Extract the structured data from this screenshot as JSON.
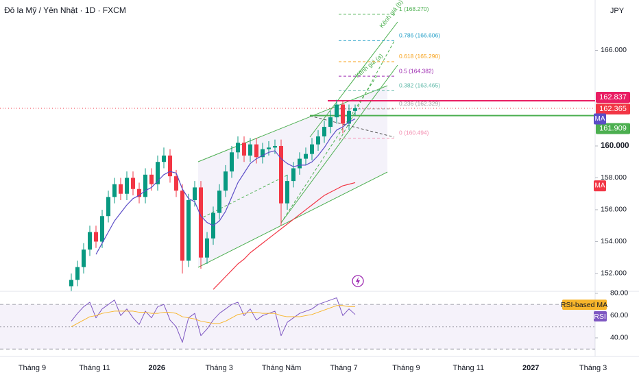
{
  "chart_data": {
    "type": "candlestick",
    "title": "Đô la Mỹ / Yên Nhật · 1D · FXCM",
    "currency": "JPY",
    "up_color": "#089981",
    "down_color": "#f23645",
    "ylim": [
      150.88,
      169.16
    ],
    "yticks": [
      {
        "value": 152,
        "label": "152.000"
      },
      {
        "value": 154,
        "label": "154.000"
      },
      {
        "value": 156,
        "label": "156.000"
      },
      {
        "value": 158,
        "label": "158.000"
      },
      {
        "value": 160,
        "label": "160.000"
      },
      {
        "value": 166,
        "label": "166.000"
      }
    ],
    "x_labels": [
      {
        "label": "Tháng 9",
        "bold": false
      },
      {
        "label": "Tháng 11",
        "bold": false
      },
      {
        "label": "2026",
        "bold": true
      },
      {
        "label": "Tháng 3",
        "bold": false
      },
      {
        "label": "Tháng Năm",
        "bold": false
      },
      {
        "label": "Tháng 7",
        "bold": false
      },
      {
        "label": "Tháng 9",
        "bold": false
      },
      {
        "label": "Tháng 11",
        "bold": false
      },
      {
        "label": "2027",
        "bold": true
      },
      {
        "label": "Tháng 3",
        "bold": false
      }
    ],
    "open": [
      151.2,
      151.6,
      152.4,
      153.5,
      154.6,
      154.0,
      155.6,
      156.8,
      157.6,
      157.0,
      158.0,
      157.3,
      156.8,
      158.2,
      157.6,
      159.0,
      159.4,
      158.1,
      157.2,
      152.8,
      156.6,
      157.4,
      153.0,
      154.2,
      155.8,
      157.2,
      158.4,
      159.6,
      160.2,
      159.4,
      160.1,
      159.3,
      159.8,
      159.9,
      160.0,
      156.4,
      157.8,
      158.6,
      159.2,
      159.5,
      160.1,
      160.6,
      161.2,
      161.8,
      162.6,
      161.4,
      162.2
    ],
    "high": [
      152.0,
      152.8,
      153.9,
      155.0,
      155.0,
      156.0,
      157.2,
      158.0,
      158.0,
      158.4,
      158.4,
      157.7,
      158.6,
      158.6,
      159.4,
      159.9,
      159.8,
      158.5,
      157.6,
      157.0,
      157.8,
      157.8,
      154.6,
      156.2,
      157.6,
      158.8,
      160.0,
      160.6,
      160.6,
      160.5,
      160.5,
      160.2,
      160.3,
      160.4,
      160.4,
      158.2,
      159.0,
      159.6,
      159.9,
      160.5,
      161.0,
      161.6,
      162.2,
      162.9,
      162.8,
      162.6,
      162.6
    ],
    "low": [
      150.9,
      151.2,
      152.0,
      153.1,
      153.6,
      153.6,
      155.2,
      156.4,
      156.6,
      156.6,
      156.9,
      156.4,
      156.4,
      157.2,
      157.2,
      158.6,
      157.7,
      156.8,
      152.0,
      152.4,
      156.2,
      152.3,
      152.6,
      153.8,
      155.4,
      156.8,
      158.0,
      159.2,
      159.0,
      159.0,
      158.9,
      158.9,
      159.4,
      159.5,
      155.0,
      156.0,
      157.4,
      158.2,
      158.8,
      159.1,
      159.7,
      160.2,
      160.8,
      161.4,
      160.8,
      161.0,
      161.9
    ],
    "close": [
      151.6,
      152.4,
      153.5,
      154.6,
      154.0,
      155.6,
      156.8,
      157.6,
      157.0,
      158.0,
      157.3,
      156.8,
      158.2,
      157.6,
      159.0,
      159.4,
      158.1,
      157.2,
      152.8,
      156.6,
      157.4,
      153.0,
      154.2,
      155.8,
      157.2,
      158.4,
      159.6,
      160.2,
      159.4,
      160.1,
      159.3,
      159.8,
      159.9,
      160.0,
      156.4,
      157.8,
      158.6,
      159.2,
      159.5,
      160.1,
      160.6,
      161.2,
      161.8,
      162.6,
      161.4,
      162.2,
      162.365
    ],
    "moving_averages": [
      {
        "name": "MA",
        "color": "#5b4dc7",
        "label_value": 161.7,
        "values": [
          null,
          null,
          null,
          null,
          153.2,
          153.9,
          154.6,
          155.3,
          155.8,
          156.3,
          156.7,
          156.9,
          157.2,
          157.4,
          157.8,
          158.2,
          158.4,
          158.3,
          157.3,
          156.7,
          156.5,
          155.6,
          155.2,
          155.0,
          155.3,
          155.9,
          156.8,
          157.7,
          158.3,
          158.9,
          159.2,
          159.4,
          159.6,
          159.7,
          159.2,
          158.9,
          158.7,
          158.8,
          158.8,
          159.0,
          159.4,
          159.9,
          160.5,
          161.0,
          161.2,
          161.5,
          161.7
        ]
      },
      {
        "name": "MA",
        "color": "#f23645",
        "label_value": 157.5,
        "values": [
          null,
          null,
          null,
          null,
          null,
          null,
          null,
          null,
          null,
          null,
          null,
          null,
          null,
          null,
          null,
          null,
          null,
          null,
          null,
          null,
          null,
          null,
          null,
          151.0,
          151.4,
          151.8,
          152.2,
          152.6,
          152.9,
          153.3,
          153.6,
          153.9,
          154.2,
          154.5,
          154.8,
          155.1,
          155.4,
          155.7,
          156.0,
          156.3,
          156.6,
          156.9,
          157.1,
          157.3,
          157.5,
          157.6,
          157.7
        ]
      }
    ],
    "price_lines": [
      {
        "value": 162.837,
        "color": "#e91e63"
      },
      {
        "value": 162.365,
        "color": "#f23645"
      },
      {
        "value": 161.909,
        "color": "#4caf50"
      }
    ],
    "fib_levels": [
      {
        "value": 168.27,
        "label": "1 (168.270)",
        "color": "#4caf50"
      },
      {
        "value": 166.606,
        "label": "0.786 (166.606)",
        "color": "#26a0c8"
      },
      {
        "value": 165.29,
        "label": "0.618 (165.290)",
        "color": "#f7a21b"
      },
      {
        "value": 164.382,
        "label": "0.5 (164.382)",
        "color": "#9c27b0"
      },
      {
        "value": 163.465,
        "label": "0.382 (163.465)",
        "color": "#5fb8a8"
      },
      {
        "value": 162.329,
        "label": "0.236 (162.329)",
        "color": "#9e9e9e"
      },
      {
        "value": 160.494,
        "label": "0 (160.494)",
        "color": "#f48fb1"
      }
    ],
    "channel_labels": [
      "Kênh giá (b)",
      "Kênh giá (a)"
    ],
    "rsi": {
      "name": "RSI",
      "ma_name": "RSI-based MA",
      "color": "#7e57c2",
      "ma_color": "#f7b52b",
      "ylim": [
        25.2,
        81.8
      ],
      "levels": [
        70,
        50,
        30
      ],
      "yticks": [
        {
          "value": 80,
          "label": "80.00"
        },
        {
          "value": 60,
          "label": "60.00"
        },
        {
          "value": 40,
          "label": "40.00"
        }
      ],
      "values": [
        55,
        62,
        68,
        72,
        58,
        66,
        70,
        74,
        60,
        66,
        58,
        52,
        64,
        58,
        68,
        70,
        56,
        50,
        36,
        58,
        62,
        42,
        48,
        56,
        62,
        66,
        70,
        72,
        60,
        66,
        56,
        60,
        62,
        64,
        42,
        54,
        58,
        62,
        64,
        66,
        70,
        72,
        74,
        76,
        60,
        66,
        61
      ],
      "ma_values": [
        50,
        53,
        56,
        59,
        60,
        62,
        63,
        64,
        64,
        64,
        64,
        63,
        63,
        62,
        62,
        63,
        63,
        62,
        59,
        58,
        57,
        55,
        54,
        53,
        53,
        55,
        58,
        61,
        62,
        63,
        63,
        62,
        62,
        62,
        60,
        59,
        59,
        59,
        60,
        61,
        63,
        65,
        67,
        69,
        69,
        68,
        68
      ]
    }
  }
}
